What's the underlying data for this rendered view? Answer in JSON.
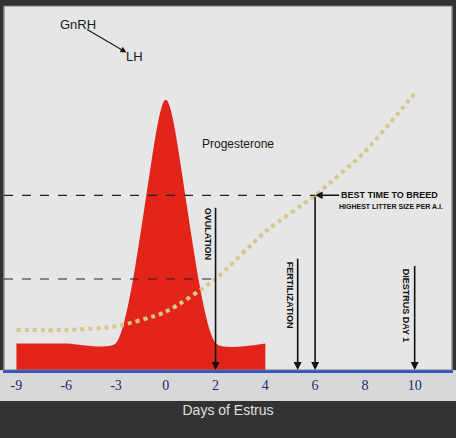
{
  "chart_data": {
    "type": "line",
    "x_title": "Days of Estrus",
    "categories": [
      "-9",
      "-6",
      "-3",
      "0",
      "2",
      "4",
      "6",
      "8",
      "10"
    ],
    "series": [
      {
        "name": "LH",
        "type": "area",
        "color": "#e3241b",
        "line_style": "solid",
        "values": [
          7,
          7,
          7,
          74,
          7,
          7,
          null,
          null,
          null
        ]
      },
      {
        "name": "Progesterone",
        "type": "line",
        "color": "#d6c68a",
        "line_style": "dotted",
        "values": [
          11,
          11,
          12,
          16,
          25,
          38,
          48,
          60,
          76
        ]
      }
    ],
    "ylim": [
      0,
      100
    ],
    "yticks": [],
    "tick_labels": "x",
    "grid": false,
    "annotations": [
      {
        "text": "GnRH",
        "day": -5.3,
        "y": 95
      },
      {
        "text": "LH",
        "day": -1.9,
        "y": 86
      },
      {
        "text": "Progesterone",
        "day": 2.9,
        "y": 62
      }
    ],
    "reference_levels": [
      {
        "day": 2,
        "y": 25
      },
      {
        "day": 6,
        "y": 48
      }
    ],
    "markers": [
      {
        "text": "OVULATION",
        "day": 2,
        "top": 45
      },
      {
        "text": "FERTILIZATION",
        "day": 5.3,
        "top": 31
      },
      {
        "day": 6,
        "top": 48
      },
      {
        "text": "DIESTRUS DAY 1",
        "day": 10,
        "top": 29
      }
    ],
    "callout": {
      "text": "BEST TIME TO BREED",
      "subtext": "HIGHEST LITTER SIZE PER A.I.",
      "day": 6,
      "y": 48
    }
  }
}
